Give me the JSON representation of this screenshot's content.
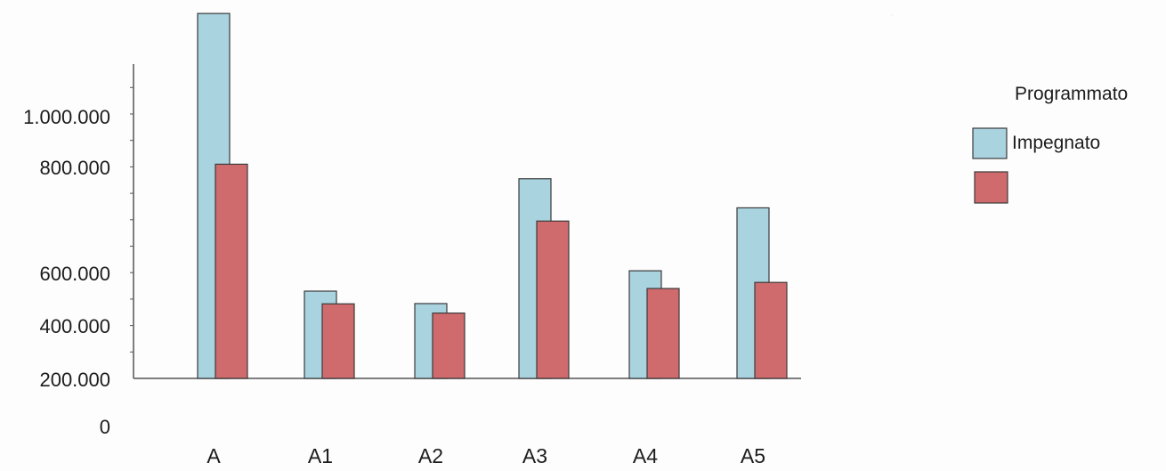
{
  "chart_data": {
    "type": "bar",
    "categories": [
      "A",
      "A1",
      "A2",
      "A3",
      "A4",
      "A5"
    ],
    "series": [
      {
        "name": "Programmato",
        "color": "#a9d3df",
        "values": [
          1380000,
          330000,
          283000,
          755000,
          407000,
          645000
        ]
      },
      {
        "name": "Impegnato",
        "color": "#cf6b6d",
        "values": [
          810000,
          282000,
          247000,
          595000,
          340000,
          363000
        ]
      }
    ],
    "y_ticks": [
      {
        "value": 0,
        "label": "0"
      },
      {
        "value": 200000,
        "label": "200.000"
      },
      {
        "value": 400000,
        "label": "400.000"
      },
      {
        "value": 600000,
        "label": "600.000"
      },
      {
        "value": 800000,
        "label": "800.000"
      },
      {
        "value": 1000000,
        "label": "1.000.000"
      }
    ],
    "ylim": [
      0,
      1400000
    ],
    "legend_placement": "right",
    "grid": false
  }
}
